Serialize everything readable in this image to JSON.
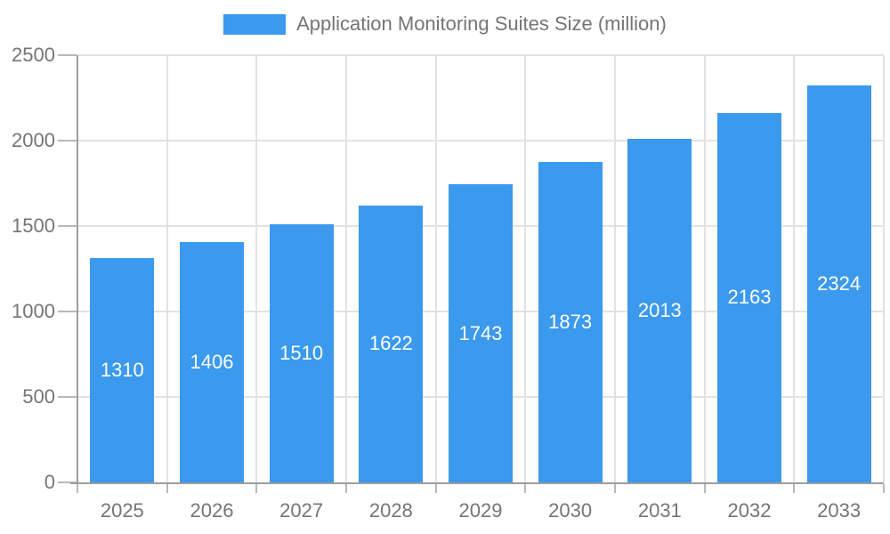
{
  "chart_data": {
    "type": "bar",
    "title": "Application Monitoring Suites Size (million)",
    "categories": [
      "2025",
      "2026",
      "2027",
      "2028",
      "2029",
      "2030",
      "2031",
      "2032",
      "2033"
    ],
    "values": [
      1310,
      1406,
      1510,
      1622,
      1743,
      1873,
      2013,
      2163,
      2324
    ],
    "xlabel": "",
    "ylabel": "",
    "ylim": [
      0,
      2500
    ],
    "yticks": [
      0,
      500,
      1000,
      1500,
      2000,
      2500
    ],
    "grid": true,
    "legend_position": "top",
    "value_label_position": "inside-center",
    "colors": {
      "bar": "#3B99EE",
      "grid": "#e2e2e2",
      "axis": "#9e9e9e",
      "tick": "#b8b8b8",
      "text": "#757575",
      "value_label": "#ffffff",
      "background": "#ffffff"
    }
  }
}
